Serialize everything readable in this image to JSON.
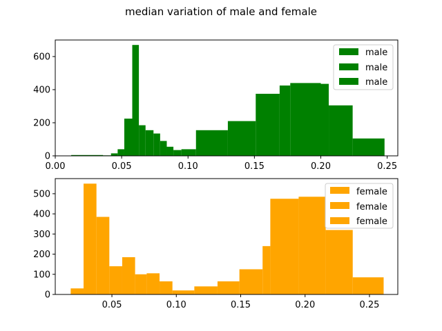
{
  "figure": {
    "suptitle": "median variation of male and female"
  },
  "chart_data": [
    {
      "type": "histogram",
      "name": "male",
      "color": "#008000",
      "xlim": [
        0.0,
        0.258
      ],
      "ylim": [
        0,
        700
      ],
      "xticks": [
        0.0,
        0.05,
        0.1,
        0.15,
        0.2,
        0.25
      ],
      "xtick_labels": [
        "0.00",
        "0.05",
        "0.10",
        "0.15",
        "0.20",
        "0.25"
      ],
      "yticks": [
        0,
        200,
        400,
        600
      ],
      "ytick_labels": [
        "0",
        "200",
        "400",
        "600"
      ],
      "legend": [
        "male",
        "male",
        "male"
      ],
      "legend_position": "top-right",
      "bins": [
        {
          "x0": 0.012,
          "x1": 0.036,
          "value": 5
        },
        {
          "x0": 0.036,
          "x1": 0.042,
          "value": 3
        },
        {
          "x0": 0.042,
          "x1": 0.047,
          "value": 15
        },
        {
          "x0": 0.047,
          "x1": 0.052,
          "value": 40
        },
        {
          "x0": 0.052,
          "x1": 0.058,
          "value": 225
        },
        {
          "x0": 0.058,
          "x1": 0.063,
          "value": 670
        },
        {
          "x0": 0.063,
          "x1": 0.068,
          "value": 185
        },
        {
          "x0": 0.068,
          "x1": 0.074,
          "value": 155
        },
        {
          "x0": 0.074,
          "x1": 0.079,
          "value": 135
        },
        {
          "x0": 0.079,
          "x1": 0.084,
          "value": 90
        },
        {
          "x0": 0.084,
          "x1": 0.089,
          "value": 55
        },
        {
          "x0": 0.089,
          "x1": 0.095,
          "value": 35
        },
        {
          "x0": 0.095,
          "x1": 0.106,
          "value": 40
        },
        {
          "x0": 0.106,
          "x1": 0.13,
          "value": 155
        },
        {
          "x0": 0.13,
          "x1": 0.151,
          "value": 210
        },
        {
          "x0": 0.151,
          "x1": 0.169,
          "value": 375
        },
        {
          "x0": 0.169,
          "x1": 0.177,
          "value": 425
        },
        {
          "x0": 0.177,
          "x1": 0.2,
          "value": 440
        },
        {
          "x0": 0.2,
          "x1": 0.206,
          "value": 435
        },
        {
          "x0": 0.206,
          "x1": 0.224,
          "value": 305
        },
        {
          "x0": 0.224,
          "x1": 0.248,
          "value": 105
        }
      ]
    },
    {
      "type": "histogram",
      "name": "female",
      "color": "#FFA500",
      "xlim": [
        0.006,
        0.272
      ],
      "ylim": [
        0,
        575
      ],
      "xticks": [
        0.05,
        0.1,
        0.15,
        0.2,
        0.25
      ],
      "xtick_labels": [
        "0.05",
        "0.10",
        "0.15",
        "0.20",
        "0.25"
      ],
      "yticks": [
        0,
        100,
        200,
        300,
        400,
        500
      ],
      "ytick_labels": [
        "0",
        "100",
        "200",
        "300",
        "400",
        "500"
      ],
      "legend": [
        "female",
        "female",
        "female"
      ],
      "legend_position": "top-right",
      "bins": [
        {
          "x0": 0.018,
          "x1": 0.028,
          "value": 30
        },
        {
          "x0": 0.028,
          "x1": 0.038,
          "value": 550
        },
        {
          "x0": 0.038,
          "x1": 0.048,
          "value": 385
        },
        {
          "x0": 0.048,
          "x1": 0.058,
          "value": 140
        },
        {
          "x0": 0.058,
          "x1": 0.068,
          "value": 185
        },
        {
          "x0": 0.068,
          "x1": 0.077,
          "value": 100
        },
        {
          "x0": 0.077,
          "x1": 0.087,
          "value": 105
        },
        {
          "x0": 0.087,
          "x1": 0.097,
          "value": 65
        },
        {
          "x0": 0.097,
          "x1": 0.114,
          "value": 20
        },
        {
          "x0": 0.114,
          "x1": 0.132,
          "value": 40
        },
        {
          "x0": 0.132,
          "x1": 0.149,
          "value": 65
        },
        {
          "x0": 0.149,
          "x1": 0.167,
          "value": 125
        },
        {
          "x0": 0.167,
          "x1": 0.173,
          "value": 240
        },
        {
          "x0": 0.173,
          "x1": 0.195,
          "value": 475
        },
        {
          "x0": 0.195,
          "x1": 0.216,
          "value": 485
        },
        {
          "x0": 0.216,
          "x1": 0.237,
          "value": 320
        },
        {
          "x0": 0.237,
          "x1": 0.261,
          "value": 85
        }
      ]
    }
  ]
}
